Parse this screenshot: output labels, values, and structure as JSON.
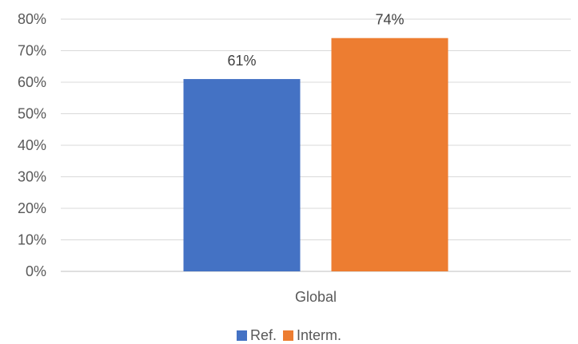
{
  "chart_data": {
    "type": "bar",
    "categories": [
      "Global"
    ],
    "series": [
      {
        "name": "Ref.",
        "values": [
          61
        ],
        "color": "#4472C4"
      },
      {
        "name": "Interm.",
        "values": [
          74
        ],
        "color": "#ED7D31"
      }
    ],
    "data_labels": [
      "61%",
      "74%"
    ],
    "y_ticks": [
      "0%",
      "10%",
      "20%",
      "30%",
      "40%",
      "50%",
      "60%",
      "70%",
      "80%"
    ],
    "ylim": [
      0,
      80
    ],
    "y_unit": "%",
    "grid": true,
    "legend_position": "bottom"
  }
}
